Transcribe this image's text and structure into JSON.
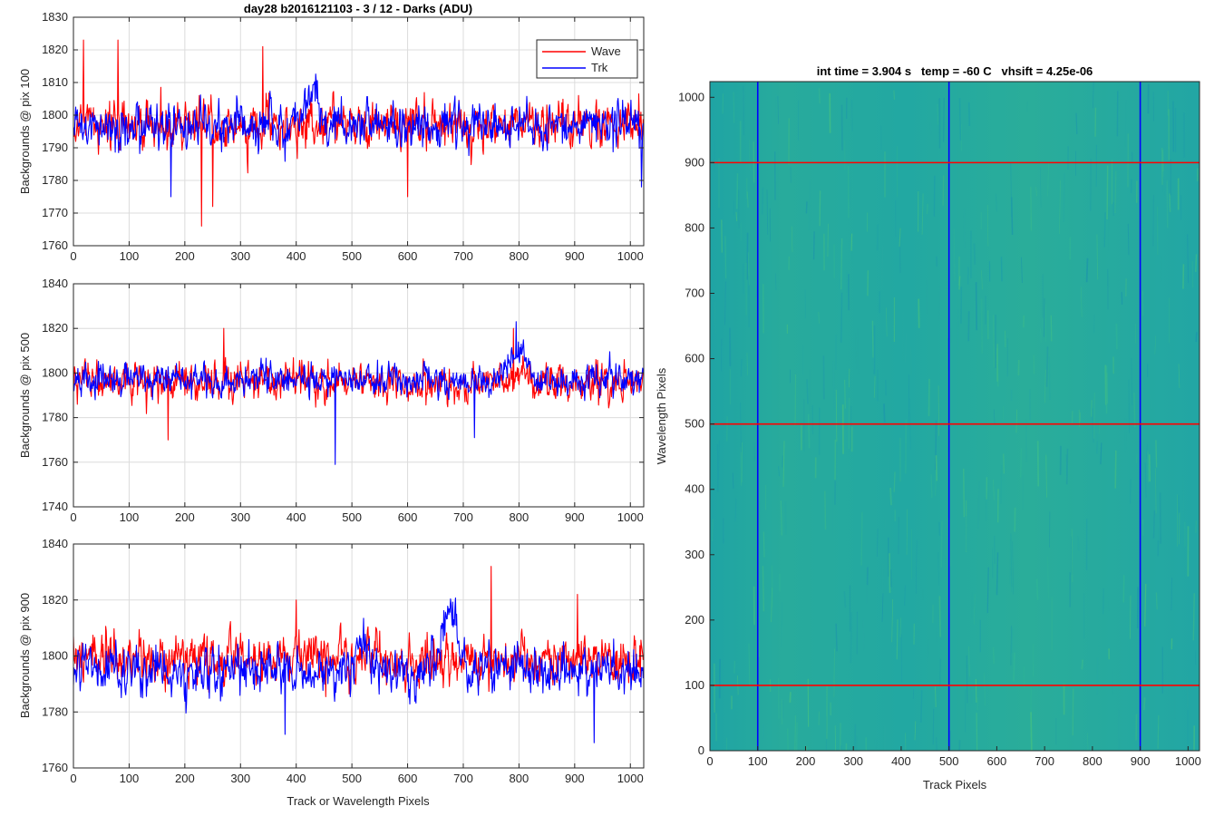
{
  "chart_data": [
    {
      "type": "line",
      "title": "day28 b2016121103 - 3 / 12 - Darks (ADU)",
      "xlabel": "",
      "ylabel": "Backgrounds @ pix 100",
      "xlim": [
        0,
        1024
      ],
      "ylim": [
        1760,
        1830
      ],
      "xticks": [
        0,
        100,
        200,
        300,
        400,
        500,
        600,
        700,
        800,
        900,
        1000
      ],
      "yticks": [
        1760,
        1770,
        1780,
        1790,
        1800,
        1810,
        1820,
        1830
      ],
      "grid": true,
      "legend": {
        "placement": "top-right",
        "entries": [
          "Wave",
          "Trk"
        ]
      },
      "series": [
        {
          "name": "Wave",
          "color": "#ff0000",
          "mean": 1797,
          "spread": 5,
          "notable": [
            [
              18,
              1823
            ],
            [
              80,
              1823
            ],
            [
              230,
              1766
            ],
            [
              250,
              1772
            ],
            [
              340,
              1821
            ],
            [
              600,
              1775
            ]
          ]
        },
        {
          "name": "Trk",
          "color": "#0000ff",
          "mean": 1797,
          "spread": 5,
          "features": [
            [
              400,
              450,
              7
            ]
          ],
          "notable": [
            [
              175,
              1775
            ],
            [
              1020,
              1778
            ]
          ]
        }
      ]
    },
    {
      "type": "line",
      "title": "",
      "xlabel": "",
      "ylabel": "Backgrounds @ pix 500",
      "xlim": [
        0,
        1024
      ],
      "ylim": [
        1740,
        1840
      ],
      "xticks": [
        0,
        100,
        200,
        300,
        400,
        500,
        600,
        700,
        800,
        900,
        1000
      ],
      "yticks": [
        1740,
        1760,
        1780,
        1800,
        1820,
        1840
      ],
      "grid": true,
      "series": [
        {
          "name": "Wave",
          "color": "#ff0000",
          "mean": 1796,
          "spread": 6,
          "notable": [
            [
              170,
              1770
            ],
            [
              270,
              1820
            ],
            [
              790,
              1820
            ]
          ]
        },
        {
          "name": "Trk",
          "color": "#0000ff",
          "mean": 1797,
          "spread": 5,
          "features": [
            [
              760,
              830,
              10
            ]
          ],
          "notable": [
            [
              470,
              1759
            ],
            [
              720,
              1771
            ],
            [
              795,
              1823
            ]
          ]
        }
      ]
    },
    {
      "type": "line",
      "title": "",
      "xlabel": "Track or Wavelength Pixels",
      "ylabel": "Backgrounds @ pix 900",
      "xlim": [
        0,
        1024
      ],
      "ylim": [
        1760,
        1840
      ],
      "xticks": [
        0,
        100,
        200,
        300,
        400,
        500,
        600,
        700,
        800,
        900,
        1000
      ],
      "yticks": [
        1760,
        1780,
        1800,
        1820,
        1840
      ],
      "grid": true,
      "series": [
        {
          "name": "Wave",
          "color": "#ff0000",
          "mean": 1799,
          "spread": 6,
          "notable": [
            [
              400,
              1820
            ],
            [
              750,
              1832
            ],
            [
              905,
              1822
            ]
          ]
        },
        {
          "name": "Trk",
          "color": "#0000ff",
          "mean": 1795,
          "spread": 6,
          "features": [
            [
              500,
              540,
              8
            ],
            [
              650,
              700,
              20
            ]
          ],
          "notable": [
            [
              380,
              1772
            ],
            [
              935,
              1769
            ]
          ]
        }
      ]
    },
    {
      "type": "heatmap",
      "title": "int time = 3.904 s   temp = -60 C   vhsift = 4.25e-06",
      "xlabel": "Track Pixels",
      "ylabel": "Wavelength Pixels",
      "xlim": [
        0,
        1024
      ],
      "ylim": [
        0,
        1024
      ],
      "xticks": [
        0,
        100,
        200,
        300,
        400,
        500,
        600,
        700,
        800,
        900,
        1000
      ],
      "yticks": [
        0,
        100,
        200,
        300,
        400,
        500,
        600,
        700,
        800,
        900,
        1000
      ],
      "colormap": "parula",
      "vertical_lines": {
        "color": "#0000ff",
        "x": [
          100,
          500,
          900
        ]
      },
      "horizontal_lines": {
        "color": "#ff0000",
        "y": [
          100,
          500,
          900
        ]
      }
    }
  ]
}
